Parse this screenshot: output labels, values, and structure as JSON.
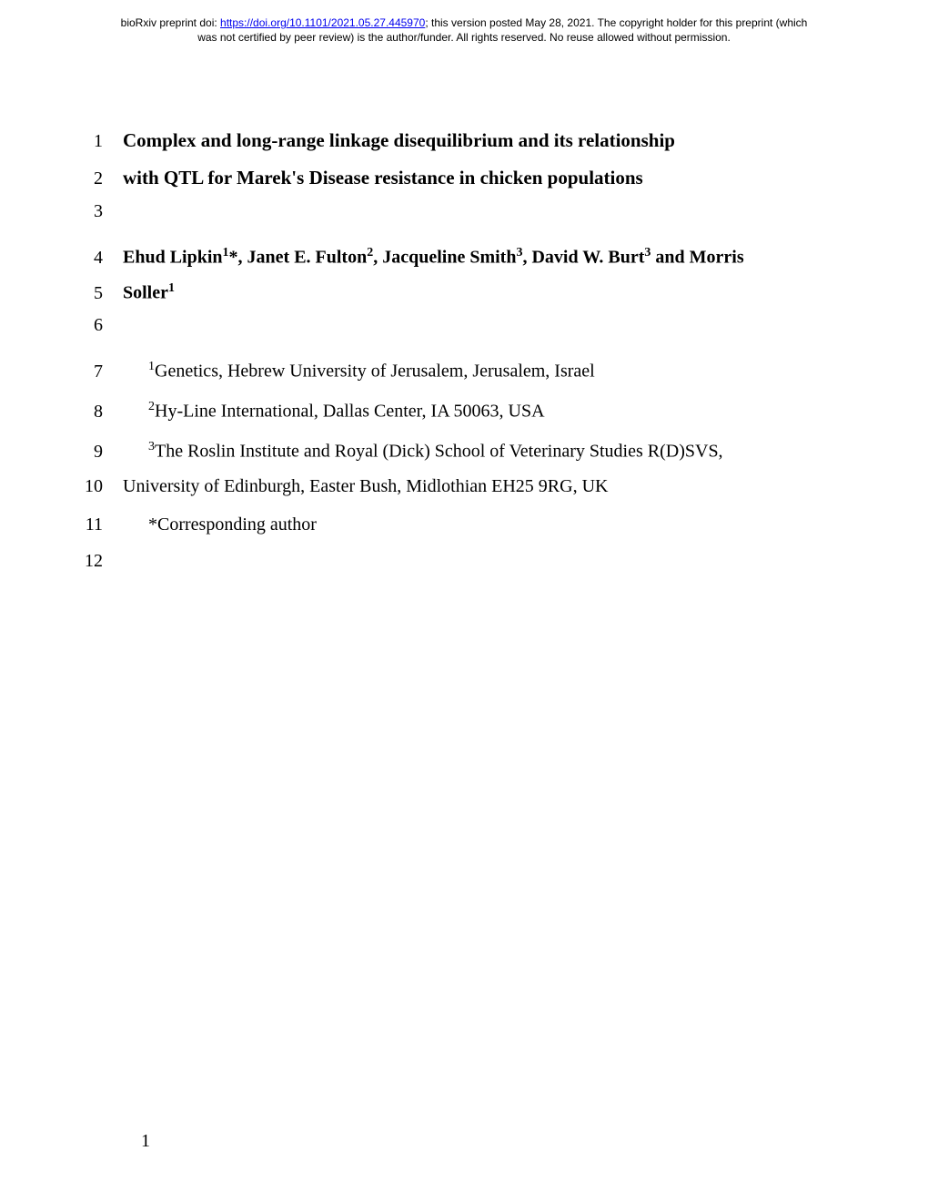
{
  "preprint": {
    "prefix": "bioRxiv preprint doi: ",
    "doi_url": "https://doi.org/10.1101/2021.05.27.445970",
    "posted": "; this version posted May 28, 2021. The copyright holder for this preprint (which",
    "line2": "was not certified by peer review) is the author/funder. All rights reserved. No reuse allowed without permission."
  },
  "lines": {
    "n1": "1",
    "n2": "2",
    "n3": "3",
    "n4": "4",
    "n5": "5",
    "n6": "6",
    "n7": "7",
    "n8": "8",
    "n9": "9",
    "n10": "10",
    "n11": "11",
    "n12": "12"
  },
  "title": {
    "line1": "Complex and long-range linkage disequilibrium and its relationship",
    "line2": "with QTL for Marek's Disease resistance in chicken populations"
  },
  "authors": {
    "a1": "Ehud Lipkin",
    "a1sup": "1",
    "a1star": "*, ",
    "a2": "Janet E. Fulton",
    "a2sup": "2",
    "comma2": ", ",
    "a3": "Jacqueline Smith",
    "a3sup": "3",
    "comma3": ", ",
    "a4": "David W. Burt",
    "a4sup": "3",
    "and": " and Morris",
    "a5line2": "Soller",
    "a5sup": "1"
  },
  "affiliations": {
    "sup1": "1",
    "aff1": "Genetics, Hebrew University of Jerusalem, Jerusalem, Israel",
    "sup2": "2",
    "aff2": "Hy-Line International, Dallas Center, IA 50063, USA",
    "sup3": "3",
    "aff3a": "The Roslin Institute and Royal (Dick) School of Veterinary Studies R(D)SVS,",
    "aff3b": "University of Edinburgh, Easter Bush, Midlothian EH25 9RG, UK"
  },
  "corresponding": "*Corresponding author",
  "page_number": "1"
}
